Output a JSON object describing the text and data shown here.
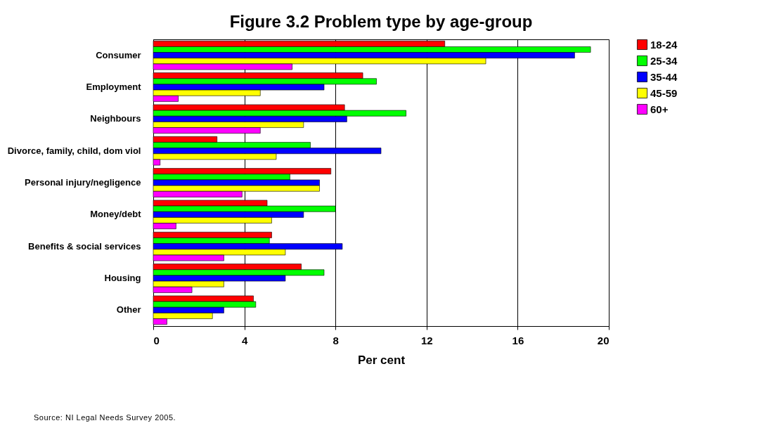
{
  "chart_data": {
    "type": "bar",
    "orientation": "horizontal",
    "title": "Figure 3.2 Problem type by age-group",
    "xlabel": "Per cent",
    "categories": [
      "Consumer",
      "Employment",
      "Neighbours",
      "Divorce, family, child, dom viol",
      "Personal injury/negligence",
      "Money/debt",
      "Benefits & social services",
      "Housing",
      "Other"
    ],
    "series": [
      {
        "name": "18-24",
        "color": "#ff0000",
        "values": [
          12.8,
          9.2,
          8.4,
          2.8,
          7.8,
          5.0,
          5.2,
          6.5,
          4.4
        ]
      },
      {
        "name": "25-34",
        "color": "#00ff00",
        "values": [
          19.2,
          9.8,
          11.1,
          6.9,
          6.0,
          8.0,
          5.1,
          7.5,
          4.5
        ]
      },
      {
        "name": "35-44",
        "color": "#0000ff",
        "values": [
          18.5,
          7.5,
          8.5,
          10.0,
          7.3,
          6.6,
          8.3,
          5.8,
          3.1
        ]
      },
      {
        "name": "45-59",
        "color": "#ffff00",
        "values": [
          14.6,
          4.7,
          6.6,
          5.4,
          7.3,
          5.2,
          5.8,
          3.1,
          2.6
        ]
      },
      {
        "name": "60+",
        "color": "#ff00ff",
        "values": [
          6.1,
          1.1,
          4.7,
          0.3,
          3.9,
          1.0,
          3.1,
          1.7,
          0.6
        ]
      }
    ],
    "xlim": [
      0,
      20
    ],
    "xticks": [
      0,
      4,
      8,
      12,
      16,
      20
    ],
    "grid": "x",
    "legend": "right",
    "annotations": [
      "Source: NI Legal Needs Survey 2005."
    ]
  }
}
